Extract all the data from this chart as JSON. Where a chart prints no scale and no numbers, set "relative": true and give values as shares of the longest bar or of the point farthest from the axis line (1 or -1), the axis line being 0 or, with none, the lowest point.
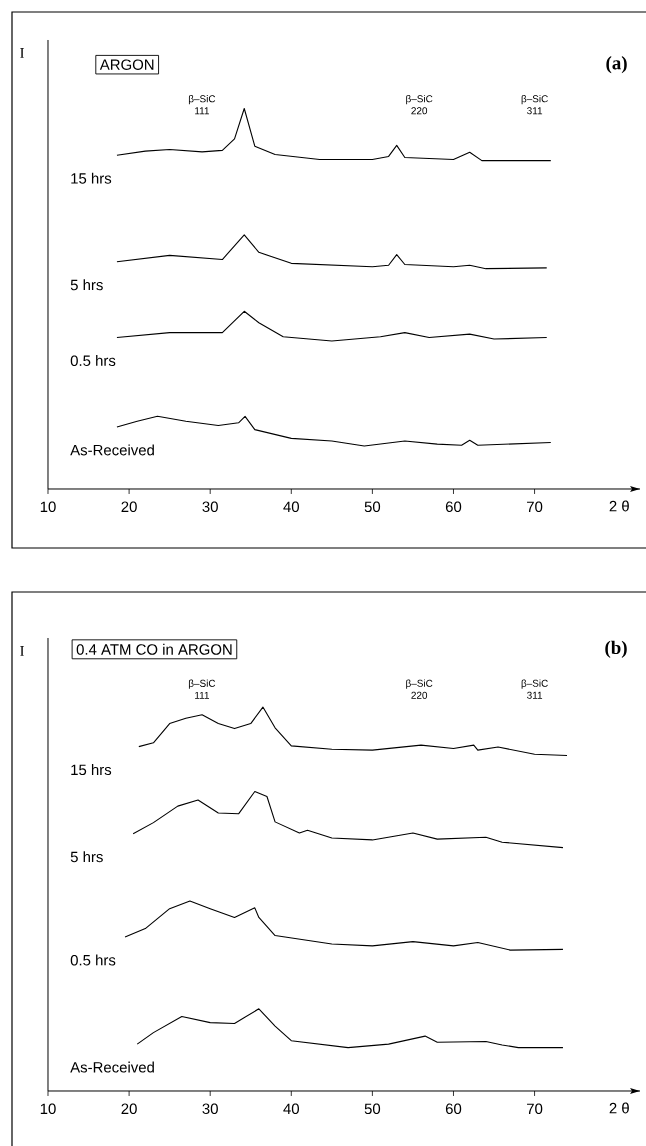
{
  "chart_data": [
    {
      "type": "line",
      "title": "ARGON",
      "xlabel": "2 θ",
      "ylabel": "I",
      "relative": true,
      "xlim": [
        10,
        83
      ],
      "xticks": [
        10,
        20,
        30,
        40,
        50,
        60,
        70
      ],
      "annotations": [
        "(a)",
        "β–SiC 111",
        "β–SiC 220",
        "β–SiC 311"
      ],
      "series": [
        {
          "name": "15 hrs",
          "color": "#000000",
          "x": [
            18.5,
            22,
            25,
            29,
            31.5,
            33,
            34.2,
            35.5,
            38,
            43.5,
            50,
            52,
            53,
            54,
            60,
            62,
            63.5,
            72
          ],
          "values": [
            0.877,
            0.888,
            0.892,
            0.886,
            0.89,
            0.92,
            1.0,
            0.901,
            0.879,
            0.866,
            0.866,
            0.874,
            0.903,
            0.871,
            0.866,
            0.885,
            0.863,
            0.863
          ]
        },
        {
          "name": "5 hrs",
          "color": "#000000",
          "x": [
            18.5,
            25,
            31.5,
            34.2,
            36,
            40,
            50,
            52,
            53,
            54,
            60,
            62,
            64,
            71.5
          ],
          "values": [
            0.597,
            0.614,
            0.603,
            0.668,
            0.622,
            0.593,
            0.584,
            0.588,
            0.616,
            0.59,
            0.584,
            0.588,
            0.579,
            0.581
          ]
        },
        {
          "name": "0.5 hrs",
          "color": "#000000",
          "x": [
            18.5,
            25,
            31.5,
            34.2,
            36,
            39,
            45,
            51,
            54,
            57,
            62,
            65,
            71.5
          ],
          "values": [
            0.398,
            0.411,
            0.411,
            0.467,
            0.437,
            0.4,
            0.389,
            0.4,
            0.411,
            0.398,
            0.407,
            0.394,
            0.398
          ]
        },
        {
          "name": "As-Received",
          "color": "#000000",
          "x": [
            18.5,
            21,
            23.5,
            27,
            31,
            33.5,
            34.3,
            35.5,
            40,
            45,
            49,
            54,
            58,
            61,
            62,
            63,
            72
          ],
          "values": [
            0.163,
            0.178,
            0.191,
            0.178,
            0.167,
            0.174,
            0.191,
            0.156,
            0.133,
            0.126,
            0.113,
            0.126,
            0.118,
            0.115,
            0.128,
            0.115,
            0.122
          ]
        }
      ]
    },
    {
      "type": "line",
      "title": "0.4 ATM CO in ARGON",
      "xlabel": "2 θ",
      "ylabel": "I",
      "relative": true,
      "xlim": [
        10,
        83
      ],
      "xticks": [
        10,
        20,
        30,
        40,
        50,
        60,
        70
      ],
      "annotations": [
        "(b)",
        "β–SiC 111",
        "β–SiC 220",
        "β–SiC 311"
      ],
      "series": [
        {
          "name": "15 hrs",
          "color": "#000000",
          "x": [
            21.2,
            23,
            25,
            27,
            29,
            31,
            33,
            35,
            36.5,
            38,
            40,
            45,
            50,
            56,
            60,
            62.5,
            63,
            65.5,
            70,
            74
          ],
          "values": [
            0.897,
            0.907,
            0.957,
            0.971,
            0.98,
            0.957,
            0.944,
            0.957,
            1.0,
            0.946,
            0.899,
            0.89,
            0.888,
            0.901,
            0.892,
            0.901,
            0.888,
            0.896,
            0.877,
            0.874
          ]
        },
        {
          "name": "5 hrs",
          "color": "#000000",
          "x": [
            20.5,
            23,
            26,
            28.5,
            31,
            33.5,
            35.5,
            37,
            38,
            41,
            42,
            45,
            50,
            55,
            58,
            64,
            66,
            73.5
          ],
          "values": [
            0.67,
            0.699,
            0.742,
            0.758,
            0.724,
            0.722,
            0.78,
            0.767,
            0.701,
            0.672,
            0.679,
            0.659,
            0.654,
            0.672,
            0.656,
            0.661,
            0.648,
            0.634
          ]
        },
        {
          "name": "0.5 hrs",
          "color": "#000000",
          "x": [
            19.5,
            22,
            25,
            27.5,
            30,
            33,
            35.5,
            36,
            38,
            45,
            50,
            55,
            60,
            63,
            67,
            73.5
          ],
          "values": [
            0.401,
            0.423,
            0.475,
            0.495,
            0.475,
            0.452,
            0.477,
            0.452,
            0.405,
            0.383,
            0.378,
            0.389,
            0.378,
            0.387,
            0.367,
            0.369
          ]
        },
        {
          "name": "As-Received",
          "color": "#000000",
          "x": [
            21,
            23,
            26.5,
            30,
            33,
            36,
            38,
            40,
            47,
            52,
            56.5,
            58,
            64,
            66,
            68,
            73.5
          ],
          "values": [
            0.122,
            0.152,
            0.194,
            0.178,
            0.176,
            0.214,
            0.169,
            0.131,
            0.113,
            0.122,
            0.143,
            0.127,
            0.129,
            0.12,
            0.113,
            0.113
          ]
        }
      ]
    }
  ]
}
